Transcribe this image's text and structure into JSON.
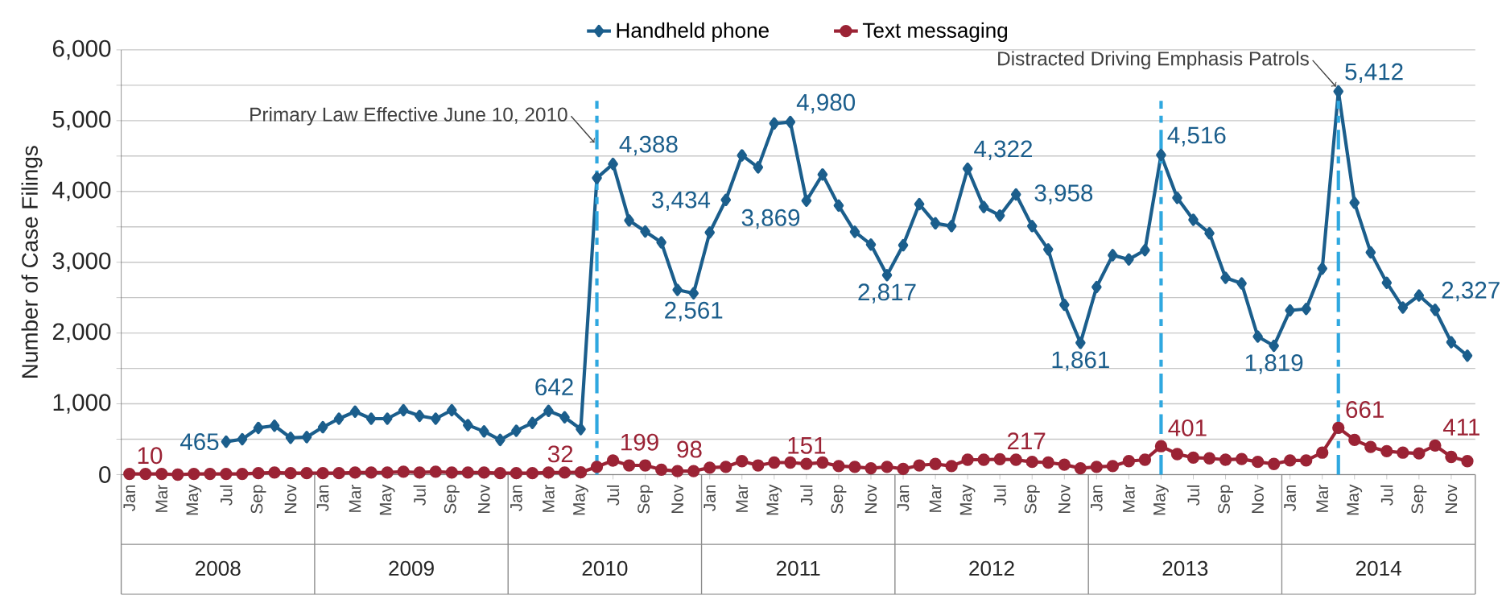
{
  "chart_data": {
    "type": "line",
    "ylabel": "Number of Case Filings",
    "legend": "top",
    "grid": "y",
    "line_style": "solid",
    "x": [
      "2008-01",
      "2008-02",
      "2008-03",
      "2008-04",
      "2008-05",
      "2008-06",
      "2008-07",
      "2008-08",
      "2008-09",
      "2008-10",
      "2008-11",
      "2008-12",
      "2009-01",
      "2009-02",
      "2009-03",
      "2009-04",
      "2009-05",
      "2009-06",
      "2009-07",
      "2009-08",
      "2009-09",
      "2009-10",
      "2009-11",
      "2009-12",
      "2010-01",
      "2010-02",
      "2010-03",
      "2010-04",
      "2010-05",
      "2010-06",
      "2010-07",
      "2010-08",
      "2010-09",
      "2010-10",
      "2010-11",
      "2010-12",
      "2011-01",
      "2011-02",
      "2011-03",
      "2011-04",
      "2011-05",
      "2011-06",
      "2011-07",
      "2011-08",
      "2011-09",
      "2011-10",
      "2011-11",
      "2011-12",
      "2012-01",
      "2012-02",
      "2012-03",
      "2012-04",
      "2012-05",
      "2012-06",
      "2012-07",
      "2012-08",
      "2012-09",
      "2012-10",
      "2012-11",
      "2012-12",
      "2013-01",
      "2013-02",
      "2013-03",
      "2013-04",
      "2013-05",
      "2013-06",
      "2013-07",
      "2013-08",
      "2013-09",
      "2013-10",
      "2013-11",
      "2013-12",
      "2014-01",
      "2014-02",
      "2014-03",
      "2014-04",
      "2014-05",
      "2014-06",
      "2014-07",
      "2014-08",
      "2014-09",
      "2014-10",
      "2014-11",
      "2014-12"
    ],
    "xlim": [
      "2007-12-16",
      "2014-12-16"
    ],
    "xticks": [
      {
        "value": "2008-01",
        "label": "Jan"
      },
      {
        "value": "2008-03",
        "label": "Mar"
      },
      {
        "value": "2008-05",
        "label": "May"
      },
      {
        "value": "2008-07",
        "label": "Jul"
      },
      {
        "value": "2008-09",
        "label": "Sep"
      },
      {
        "value": "2008-11",
        "label": "Nov"
      },
      {
        "value": "2009-01",
        "label": "Jan"
      },
      {
        "value": "2009-03",
        "label": "Mar"
      },
      {
        "value": "2009-05",
        "label": "May"
      },
      {
        "value": "2009-07",
        "label": "Jul"
      },
      {
        "value": "2009-09",
        "label": "Sep"
      },
      {
        "value": "2009-11",
        "label": "Nov"
      },
      {
        "value": "2010-01",
        "label": "Jan"
      },
      {
        "value": "2010-03",
        "label": "Mar"
      },
      {
        "value": "2010-05",
        "label": "May"
      },
      {
        "value": "2010-07",
        "label": "Jul"
      },
      {
        "value": "2010-09",
        "label": "Sep"
      },
      {
        "value": "2010-11",
        "label": "Nov"
      },
      {
        "value": "2011-01",
        "label": "Jan"
      },
      {
        "value": "2011-03",
        "label": "Mar"
      },
      {
        "value": "2011-05",
        "label": "May"
      },
      {
        "value": "2011-07",
        "label": "Jul"
      },
      {
        "value": "2011-09",
        "label": "Sep"
      },
      {
        "value": "2011-11",
        "label": "Nov"
      },
      {
        "value": "2012-01",
        "label": "Jan"
      },
      {
        "value": "2012-03",
        "label": "Mar"
      },
      {
        "value": "2012-05",
        "label": "May"
      },
      {
        "value": "2012-07",
        "label": "Jul"
      },
      {
        "value": "2012-09",
        "label": "Sep"
      },
      {
        "value": "2012-11",
        "label": "Nov"
      },
      {
        "value": "2013-01",
        "label": "Jan"
      },
      {
        "value": "2013-03",
        "label": "Mar"
      },
      {
        "value": "2013-05",
        "label": "May"
      },
      {
        "value": "2013-07",
        "label": "Jul"
      },
      {
        "value": "2013-09",
        "label": "Sep"
      },
      {
        "value": "2013-11",
        "label": "Nov"
      },
      {
        "value": "2014-01",
        "label": "Jan"
      },
      {
        "value": "2014-03",
        "label": "Mar"
      },
      {
        "value": "2014-05",
        "label": "May"
      },
      {
        "value": "2014-07",
        "label": "Jul"
      },
      {
        "value": "2014-09",
        "label": "Sep"
      },
      {
        "value": "2014-11",
        "label": "Nov"
      }
    ],
    "ylim": [
      0,
      6000
    ],
    "yticks": [
      0,
      {
        "value": 500,
        "label": null
      },
      {
        "value": 1000,
        "label": "1,000"
      },
      {
        "value": 1500,
        "label": null
      },
      {
        "value": 2000,
        "label": "2,000"
      },
      {
        "value": 2500,
        "label": null
      },
      {
        "value": 3000,
        "label": "3,000"
      },
      {
        "value": 3500,
        "label": null
      },
      {
        "value": 4000,
        "label": "4,000"
      },
      {
        "value": 4500,
        "label": null
      },
      {
        "value": 5000,
        "label": "5,000"
      },
      {
        "value": 5500,
        "label": null
      },
      {
        "value": 6000,
        "label": "6,000"
      }
    ],
    "series": [
      {
        "name": "Handheld phone",
        "color": "#1b5e8c",
        "marker": "diamond",
        "values": [
          null,
          null,
          null,
          null,
          null,
          null,
          465,
          500,
          660,
          690,
          520,
          530,
          670,
          790,
          890,
          790,
          790,
          910,
          830,
          790,
          910,
          700,
          610,
          490,
          620,
          730,
          900,
          810,
          642,
          4190,
          4388,
          3590,
          3434,
          3280,
          2610,
          2561,
          3420,
          3880,
          4510,
          4340,
          4960,
          4980,
          3869,
          4240,
          3800,
          3430,
          3250,
          2817,
          3240,
          3820,
          3550,
          3510,
          4322,
          3780,
          3660,
          3958,
          3510,
          3180,
          2400,
          1861,
          2650,
          3100,
          3040,
          3170,
          4516,
          3910,
          3600,
          3410,
          2780,
          2700,
          1950,
          1819,
          2320,
          2340,
          2910,
          5412,
          3840,
          3140,
          2710,
          2360,
          2530,
          2327,
          1870,
          1680
        ],
        "value_labels": [
          null,
          null,
          null,
          null,
          null,
          null,
          "465",
          null,
          null,
          null,
          null,
          null,
          null,
          null,
          null,
          null,
          null,
          null,
          null,
          null,
          null,
          null,
          null,
          null,
          null,
          null,
          null,
          null,
          "642",
          null,
          "4,388",
          null,
          "3,434",
          null,
          null,
          "2,561",
          null,
          null,
          null,
          null,
          null,
          "4,980",
          "3,869",
          null,
          null,
          null,
          null,
          "2,817",
          null,
          null,
          null,
          null,
          "4,322",
          null,
          null,
          "3,958",
          null,
          null,
          null,
          "1,861",
          null,
          null,
          null,
          null,
          "4,516",
          null,
          null,
          null,
          null,
          null,
          null,
          "1,819",
          null,
          null,
          null,
          "5,412",
          null,
          null,
          null,
          null,
          null,
          "2,327",
          null,
          null
        ]
      },
      {
        "name": "Text messaging",
        "color": "#9b2335",
        "marker": "circle",
        "values": [
          10,
          10,
          10,
          0,
          10,
          10,
          10,
          10,
          20,
          30,
          20,
          20,
          20,
          20,
          30,
          30,
          30,
          40,
          30,
          40,
          30,
          30,
          30,
          20,
          20,
          20,
          30,
          30,
          32,
          110,
          199,
          130,
          130,
          70,
          50,
          50,
          98,
          110,
          190,
          130,
          170,
          170,
          151,
          170,
          120,
          110,
          90,
          110,
          80,
          130,
          150,
          120,
          210,
          210,
          217,
          210,
          180,
          170,
          140,
          90,
          110,
          120,
          190,
          210,
          401,
          290,
          240,
          230,
          210,
          220,
          180,
          150,
          200,
          200,
          310,
          661,
          490,
          390,
          330,
          310,
          300,
          411,
          250,
          190
        ],
        "value_labels": [
          "10",
          null,
          null,
          null,
          null,
          null,
          null,
          null,
          null,
          null,
          null,
          null,
          null,
          null,
          null,
          null,
          null,
          null,
          null,
          null,
          null,
          null,
          null,
          null,
          null,
          null,
          null,
          null,
          "32",
          null,
          "199",
          null,
          null,
          null,
          null,
          null,
          "98",
          null,
          null,
          null,
          null,
          null,
          "151",
          null,
          null,
          null,
          null,
          null,
          null,
          null,
          null,
          null,
          null,
          null,
          "217",
          null,
          null,
          null,
          null,
          null,
          null,
          null,
          null,
          null,
          "401",
          null,
          null,
          null,
          null,
          null,
          null,
          null,
          null,
          null,
          null,
          "661",
          null,
          null,
          null,
          null,
          null,
          "411",
          null,
          null
        ]
      }
    ],
    "ref_lines": [
      {
        "axis": "x",
        "value": "2010-06",
        "color": "#2fa8e0",
        "line_style": "dashed"
      },
      {
        "axis": "x",
        "value": "2013-05",
        "color": "#2fa8e0",
        "line_style": "dashed"
      },
      {
        "axis": "x",
        "value": "2014-04",
        "color": "#2fa8e0",
        "line_style": "dashed"
      }
    ],
    "annotations": [
      {
        "text": "Primary Law Effective June 10, 2010",
        "x": "2010-06",
        "y": 4690
      },
      {
        "text": "Distracted Driving Emphasis Patrols",
        "x": "2014-04",
        "y": 5480
      },
      "2008",
      "2009",
      "2010",
      "2011",
      "2012",
      "2013",
      "2014"
    ]
  }
}
